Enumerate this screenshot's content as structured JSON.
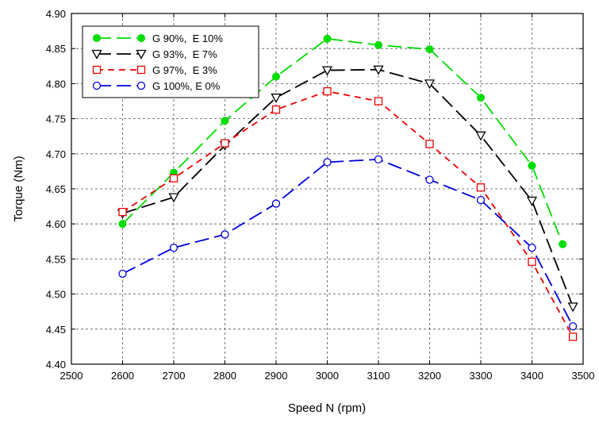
{
  "chart_data": {
    "type": "line",
    "title": "",
    "xlabel": "Speed N (rpm)",
    "ylabel": "Torque (Nm)",
    "xlim": [
      2500,
      3500
    ],
    "ylim": [
      4.4,
      4.9
    ],
    "xticks": [
      2500,
      2600,
      2700,
      2800,
      2900,
      3000,
      3100,
      3200,
      3300,
      3400,
      3500
    ],
    "yticks": [
      4.4,
      4.45,
      4.5,
      4.55,
      4.6,
      4.65,
      4.7,
      4.75,
      4.8,
      4.85,
      4.9
    ],
    "grid": true,
    "legend_position": "top-left",
    "series": [
      {
        "name": "G 90%,  E 10%",
        "color": "#00dd00",
        "marker": "filled-circle",
        "dash": "long-dash",
        "x": [
          2600,
          2700,
          2800,
          2900,
          3000,
          3100,
          3200,
          3300,
          3400,
          3460
        ],
        "y": [
          4.6,
          4.673,
          4.747,
          4.81,
          4.864,
          4.855,
          4.849,
          4.78,
          4.683,
          4.571
        ]
      },
      {
        "name": "G 93%,  E 7%",
        "color": "#000000",
        "marker": "triangle-down",
        "dash": "long-dash",
        "x": [
          2600,
          2700,
          2800,
          2900,
          3000,
          3100,
          3200,
          3300,
          3400,
          3480
        ],
        "y": [
          4.615,
          4.638,
          4.712,
          4.78,
          4.819,
          4.82,
          4.8,
          4.726,
          4.633,
          4.482
        ]
      },
      {
        "name": "G 97%,  E 3%",
        "color": "#ee0000",
        "marker": "open-square",
        "dash": "short-dash",
        "x": [
          2600,
          2700,
          2800,
          2900,
          3000,
          3100,
          3200,
          3300,
          3400,
          3480
        ],
        "y": [
          4.617,
          4.665,
          4.715,
          4.763,
          4.789,
          4.775,
          4.714,
          4.652,
          4.546,
          4.439
        ]
      },
      {
        "name": "G 100%, E 0%",
        "color": "#0000dd",
        "marker": "open-circle",
        "dash": "long-dash",
        "x": [
          2600,
          2700,
          2800,
          2900,
          3000,
          3100,
          3200,
          3300,
          3400,
          3480
        ],
        "y": [
          4.529,
          4.566,
          4.585,
          4.629,
          4.688,
          4.692,
          4.663,
          4.634,
          4.566,
          4.454
        ]
      }
    ]
  }
}
